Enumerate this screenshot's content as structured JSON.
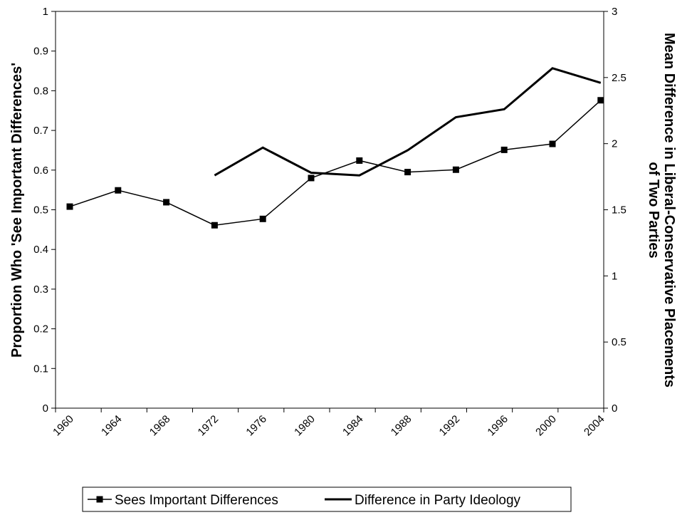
{
  "chart_data": {
    "type": "line",
    "categories": [
      "1960",
      "1964",
      "1968",
      "1972",
      "1976",
      "1980",
      "1984",
      "1988",
      "1992",
      "1996",
      "2000",
      "2004"
    ],
    "x": [
      1960,
      1964,
      1968,
      1972,
      1976,
      1980,
      1984,
      1988,
      1992,
      1996,
      2000,
      2004
    ],
    "ylabel": "Proportion Who 'See Important Differences'",
    "y2label_line1": "Mean Difference in Liberal-Conservative Placements",
    "y2label_line2": "of Two Parties",
    "ylim": [
      0,
      1
    ],
    "y2lim": [
      0,
      3
    ],
    "yticks": [
      "0",
      "0.1",
      "0.2",
      "0.3",
      "0.4",
      "0.5",
      "0.6",
      "0.7",
      "0.8",
      "0.9",
      "1"
    ],
    "y2ticks": [
      "0",
      "0.5",
      "1",
      "1.5",
      "2",
      "2.5",
      "3"
    ],
    "grid": false,
    "legend_position": "bottom",
    "series": [
      {
        "name": "Sees Important Differences",
        "axis": "left",
        "marker": "square",
        "color": "#000000",
        "x": [
          1960,
          1964,
          1968,
          1972,
          1976,
          1980,
          1984,
          1988,
          1992,
          1996,
          2000,
          2004
        ],
        "values": [
          0.508,
          0.549,
          0.519,
          0.461,
          0.477,
          0.58,
          0.624,
          0.595,
          0.601,
          0.651,
          0.666,
          0.776
        ]
      },
      {
        "name": "Difference in Party Ideology",
        "axis": "right",
        "marker": "none",
        "color": "#000000",
        "x": [
          1972,
          1976,
          1980,
          1984,
          1988,
          1992,
          1996,
          2000,
          2004
        ],
        "values": [
          1.76,
          1.97,
          1.78,
          1.76,
          1.95,
          2.2,
          2.26,
          2.57,
          2.46
        ]
      }
    ]
  }
}
